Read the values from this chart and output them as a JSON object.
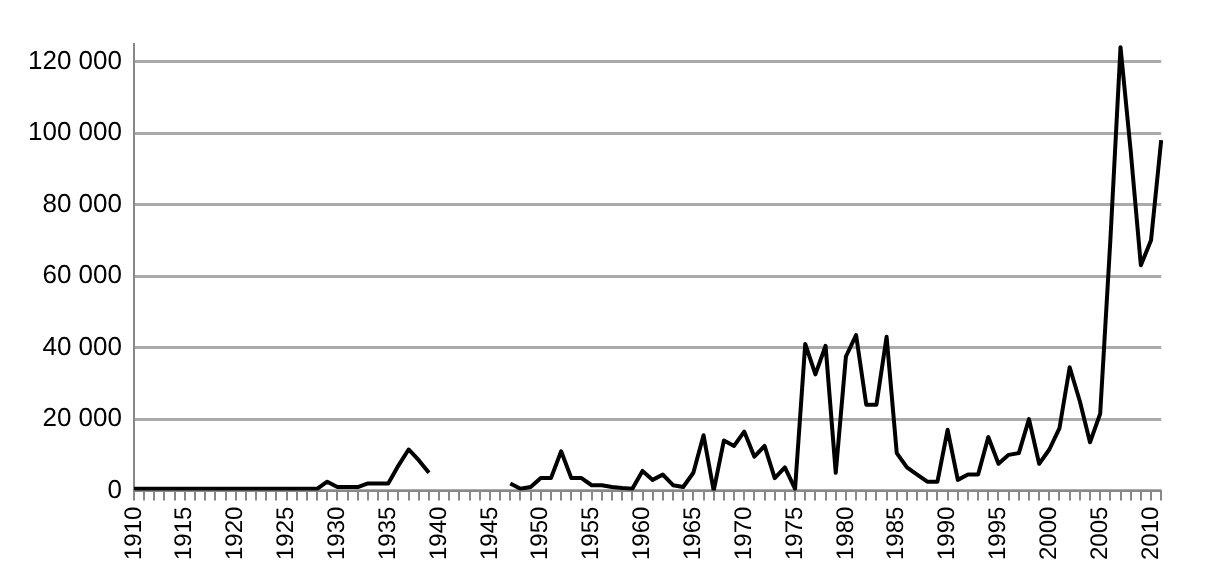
{
  "chart_data": {
    "type": "line",
    "categories": [
      "1910",
      null,
      null,
      null,
      null,
      "1915",
      null,
      null,
      null,
      null,
      "1920",
      null,
      null,
      null,
      null,
      "1925",
      null,
      null,
      null,
      null,
      "1930",
      null,
      null,
      null,
      null,
      "1935",
      null,
      null,
      null,
      null,
      "1940",
      null,
      null,
      null,
      null,
      "1945",
      null,
      null,
      null,
      null,
      "1950",
      null,
      null,
      null,
      null,
      "1955",
      null,
      null,
      null,
      null,
      "1960",
      null,
      null,
      null,
      null,
      "1965",
      null,
      null,
      null,
      null,
      "1970",
      null,
      null,
      null,
      null,
      "1975",
      null,
      null,
      null,
      null,
      "1980",
      null,
      null,
      null,
      null,
      "1985",
      null,
      null,
      null,
      null,
      "1990",
      null,
      null,
      null,
      null,
      "1995",
      null,
      null,
      null,
      null,
      "2000",
      null,
      null,
      null,
      null,
      "2005",
      null,
      null,
      null,
      null,
      "2010",
      null
    ],
    "series": [
      {
        "color": "#000000",
        "values": [
          500,
          500,
          500,
          500,
          500,
          500,
          500,
          500,
          500,
          500,
          500,
          500,
          500,
          500,
          500,
          500,
          500,
          500,
          500,
          2500,
          1000,
          1000,
          1000,
          2000,
          2000,
          2000,
          7000,
          11500,
          8500,
          5000,
          null,
          null,
          null,
          null,
          null,
          null,
          null,
          2000,
          500,
          1000,
          3500,
          3500,
          11000,
          3500,
          3500,
          1500,
          1500,
          1000,
          700,
          500,
          5500,
          3000,
          4500,
          1500,
          1000,
          5000,
          15500,
          0,
          14000,
          12500,
          16500,
          9500,
          12500,
          3500,
          6500,
          500,
          41000,
          32500,
          40500,
          5000,
          37500,
          43500,
          24000,
          24000,
          43000,
          10500,
          6500,
          4500,
          2500,
          2500,
          17000,
          3000,
          4500,
          4500,
          15000,
          7500,
          10000,
          10500,
          20000,
          7500,
          11500,
          17500,
          34500,
          25000,
          13500,
          21500,
          70000,
          124000,
          95000,
          63000,
          70000,
          98000
        ]
      }
    ],
    "ylim": [
      0,
      125000
    ],
    "yticks": [
      {
        "value": 0,
        "label": "0"
      },
      {
        "value": 20000,
        "label": "20 000"
      },
      {
        "value": 40000,
        "label": "40 000"
      },
      {
        "value": 60000,
        "label": "60 000"
      },
      {
        "value": 80000,
        "label": "80 000"
      },
      {
        "value": 100000,
        "label": "100 000"
      },
      {
        "value": 120000,
        "label": "120 000"
      }
    ],
    "grid": "y",
    "legend": false,
    "marker": "none",
    "line_style": "solid"
  }
}
